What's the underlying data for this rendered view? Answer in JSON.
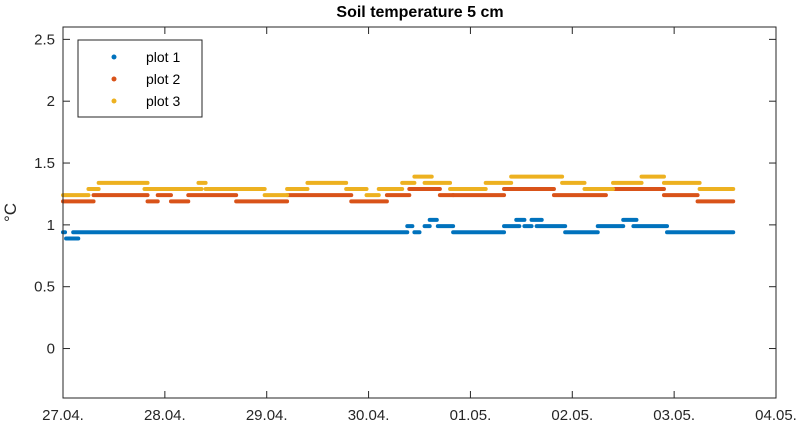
{
  "chart_data": {
    "type": "scatter",
    "title": "Soil temperature 5 cm",
    "xlabel": "",
    "ylabel": "°C",
    "x_tick_labels": [
      "27.04.",
      "28.04.",
      "29.04.",
      "30.04.",
      "01.05.",
      "02.05.",
      "03.05.",
      "04.05."
    ],
    "x_range_days": [
      0,
      7
    ],
    "ylim": [
      -0.4,
      2.6
    ],
    "y_ticks": [
      0,
      0.5,
      1,
      1.5,
      2,
      2.5
    ],
    "y_tick_labels": [
      "0",
      "0.5",
      "1",
      "1.5",
      "2",
      "2.5"
    ],
    "grid": false,
    "legend_position": "top-left",
    "series": [
      {
        "name": "plot 1",
        "color": "#0072BD",
        "segments": [
          {
            "x0": 0.0,
            "x1": 0.02,
            "y": 0.94
          },
          {
            "x0": 0.03,
            "x1": 0.15,
            "y": 0.89
          },
          {
            "x0": 0.1,
            "x1": 3.38,
            "y": 0.94
          },
          {
            "x0": 3.38,
            "x1": 3.43,
            "y": 0.99
          },
          {
            "x0": 3.45,
            "x1": 3.5,
            "y": 0.94
          },
          {
            "x0": 3.55,
            "x1": 3.6,
            "y": 0.99
          },
          {
            "x0": 3.6,
            "x1": 3.67,
            "y": 1.04
          },
          {
            "x0": 3.68,
            "x1": 3.83,
            "y": 0.99
          },
          {
            "x0": 3.83,
            "x1": 4.33,
            "y": 0.94
          },
          {
            "x0": 4.33,
            "x1": 4.48,
            "y": 0.99
          },
          {
            "x0": 4.45,
            "x1": 4.53,
            "y": 1.04
          },
          {
            "x0": 4.53,
            "x1": 4.6,
            "y": 0.99
          },
          {
            "x0": 4.6,
            "x1": 4.7,
            "y": 1.04
          },
          {
            "x0": 4.65,
            "x1": 4.93,
            "y": 0.99
          },
          {
            "x0": 4.93,
            "x1": 5.25,
            "y": 0.94
          },
          {
            "x0": 5.25,
            "x1": 5.5,
            "y": 0.99
          },
          {
            "x0": 5.5,
            "x1": 5.63,
            "y": 1.04
          },
          {
            "x0": 5.6,
            "x1": 5.93,
            "y": 0.99
          },
          {
            "x0": 5.93,
            "x1": 6.58,
            "y": 0.94
          }
        ]
      },
      {
        "name": "plot 2",
        "color": "#D95319",
        "segments": [
          {
            "x0": 0.0,
            "x1": 0.3,
            "y": 1.19
          },
          {
            "x0": 0.3,
            "x1": 0.83,
            "y": 1.24
          },
          {
            "x0": 0.83,
            "x1": 0.93,
            "y": 1.19
          },
          {
            "x0": 0.93,
            "x1": 1.06,
            "y": 1.24
          },
          {
            "x0": 1.06,
            "x1": 1.23,
            "y": 1.19
          },
          {
            "x0": 1.23,
            "x1": 1.7,
            "y": 1.24
          },
          {
            "x0": 1.7,
            "x1": 2.2,
            "y": 1.19
          },
          {
            "x0": 2.2,
            "x1": 2.83,
            "y": 1.24
          },
          {
            "x0": 2.83,
            "x1": 3.18,
            "y": 1.19
          },
          {
            "x0": 3.18,
            "x1": 3.4,
            "y": 1.24
          },
          {
            "x0": 3.4,
            "x1": 3.7,
            "y": 1.29
          },
          {
            "x0": 3.7,
            "x1": 3.83,
            "y": 1.24
          },
          {
            "x0": 3.83,
            "x1": 4.33,
            "y": 1.24
          },
          {
            "x0": 4.33,
            "x1": 4.82,
            "y": 1.29
          },
          {
            "x0": 4.82,
            "x1": 5.33,
            "y": 1.24
          },
          {
            "x0": 5.33,
            "x1": 5.9,
            "y": 1.29
          },
          {
            "x0": 5.9,
            "x1": 6.23,
            "y": 1.24
          },
          {
            "x0": 6.23,
            "x1": 6.58,
            "y": 1.19
          }
        ]
      },
      {
        "name": "plot 3",
        "color": "#EDB120",
        "segments": [
          {
            "x0": 0.0,
            "x1": 0.25,
            "y": 1.24
          },
          {
            "x0": 0.25,
            "x1": 0.35,
            "y": 1.29
          },
          {
            "x0": 0.35,
            "x1": 0.83,
            "y": 1.34
          },
          {
            "x0": 0.8,
            "x1": 1.36,
            "y": 1.29
          },
          {
            "x0": 1.33,
            "x1": 1.4,
            "y": 1.34
          },
          {
            "x0": 1.4,
            "x1": 1.98,
            "y": 1.29
          },
          {
            "x0": 1.98,
            "x1": 2.2,
            "y": 1.24
          },
          {
            "x0": 2.2,
            "x1": 2.4,
            "y": 1.29
          },
          {
            "x0": 2.4,
            "x1": 2.78,
            "y": 1.34
          },
          {
            "x0": 2.78,
            "x1": 2.98,
            "y": 1.29
          },
          {
            "x0": 2.98,
            "x1": 3.1,
            "y": 1.24
          },
          {
            "x0": 3.1,
            "x1": 3.33,
            "y": 1.29
          },
          {
            "x0": 3.33,
            "x1": 3.45,
            "y": 1.34
          },
          {
            "x0": 3.45,
            "x1": 3.62,
            "y": 1.39
          },
          {
            "x0": 3.55,
            "x1": 3.8,
            "y": 1.34
          },
          {
            "x0": 3.8,
            "x1": 4.15,
            "y": 1.29
          },
          {
            "x0": 4.15,
            "x1": 4.4,
            "y": 1.34
          },
          {
            "x0": 4.4,
            "x1": 4.9,
            "y": 1.39
          },
          {
            "x0": 4.9,
            "x1": 5.12,
            "y": 1.34
          },
          {
            "x0": 5.12,
            "x1": 5.4,
            "y": 1.29
          },
          {
            "x0": 5.4,
            "x1": 5.68,
            "y": 1.34
          },
          {
            "x0": 5.68,
            "x1": 5.9,
            "y": 1.39
          },
          {
            "x0": 5.9,
            "x1": 6.25,
            "y": 1.34
          },
          {
            "x0": 6.25,
            "x1": 6.58,
            "y": 1.29
          }
        ]
      }
    ]
  }
}
